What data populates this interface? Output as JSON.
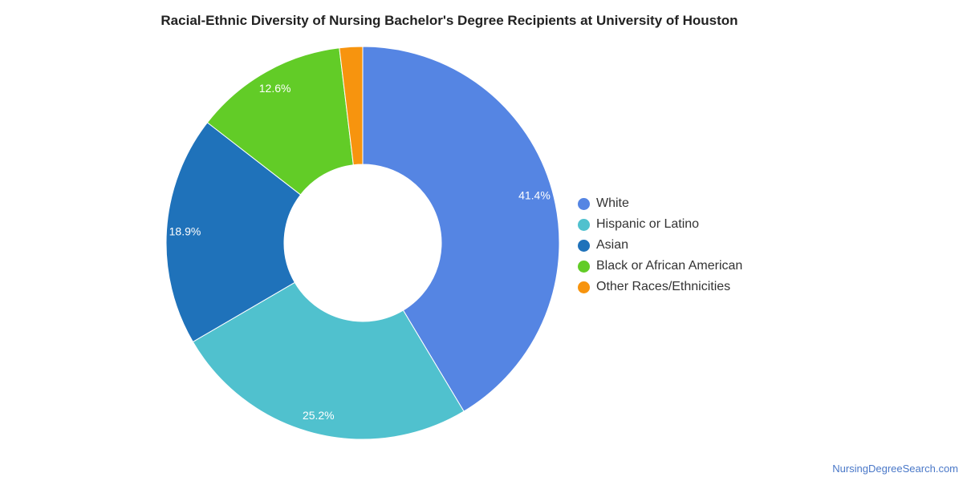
{
  "chart_data": {
    "type": "pie",
    "variant": "donut",
    "title": "Racial-Ethnic Diversity of Nursing Bachelor's Degree Recipients at University of Houston",
    "categories": [
      "White",
      "Hispanic or Latino",
      "Asian",
      "Black or African American",
      "Other Races/Ethnicities"
    ],
    "values": [
      41.4,
      25.2,
      18.9,
      12.6,
      1.9
    ],
    "data_labels": [
      "41.4%",
      "25.2%",
      "18.9%",
      "12.6%",
      ""
    ],
    "colors": [
      "#5585e3",
      "#50c1ce",
      "#1f72ba",
      "#62cc27",
      "#f7940e"
    ],
    "legend_position": "right"
  },
  "source": "NursingDegreeSearch.com"
}
